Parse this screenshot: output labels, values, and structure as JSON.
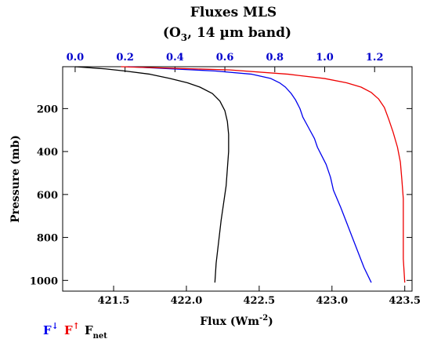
{
  "chart_data": {
    "type": "line",
    "title": "Fluxes MLS",
    "subtitle": {
      "pre": "(O",
      "sub": "3",
      "post": ", 14 µm band)"
    },
    "xlabel": {
      "pre": "Flux (Wm",
      "sup": "-2",
      "post": ")"
    },
    "ylabel": "Pressure (mb)",
    "bottom_axis": {
      "quantity": "F↓, F↑ flux",
      "unit": "Wm-2",
      "range": [
        421.15,
        423.55
      ],
      "ticks": [
        "421.5",
        "422.0",
        "422.5",
        "423.0",
        "423.5"
      ],
      "color": "#000000"
    },
    "top_axis": {
      "quantity": "Fnet flux",
      "unit": "Wm-2",
      "range": [
        -0.05,
        1.35
      ],
      "ticks": [
        "0.0",
        "0.2",
        "0.4",
        "0.6",
        "0.8",
        "1.0",
        "1.2"
      ],
      "color": "#0000cc"
    },
    "y_axis": {
      "range": [
        1050,
        5
      ],
      "reversed": true,
      "ticks": [
        "200",
        "400",
        "600",
        "800",
        "1000"
      ]
    },
    "grid": false,
    "series": [
      {
        "name": "F↓",
        "color": "#0000ee",
        "axis": "bottom",
        "x": [
          421.6,
          421.9,
          422.2,
          422.45,
          422.58,
          422.64,
          422.68,
          422.72,
          422.75,
          422.78,
          422.8,
          422.84,
          422.88,
          422.9,
          422.93,
          422.96,
          422.99,
          423.01,
          423.06,
          423.1,
          423.14,
          423.18,
          423.22,
          423.27
        ],
        "y": [
          5,
          15,
          25,
          40,
          60,
          80,
          100,
          130,
          160,
          200,
          240,
          290,
          340,
          380,
          420,
          460,
          520,
          580,
          660,
          730,
          800,
          870,
          940,
          1010
        ]
      },
      {
        "name": "F↑",
        "color": "#ee0000",
        "axis": "bottom",
        "x": [
          421.55,
          422.3,
          422.7,
          422.95,
          423.1,
          423.2,
          423.27,
          423.32,
          423.36,
          423.39,
          423.42,
          423.45,
          423.47,
          423.48,
          423.49,
          423.49,
          423.49,
          423.5
        ],
        "y": [
          5,
          20,
          40,
          60,
          80,
          100,
          125,
          155,
          195,
          250,
          310,
          380,
          450,
          530,
          620,
          760,
          900,
          1010
        ]
      },
      {
        "name": "F",
        "name_sub": "net",
        "color": "#000000",
        "axis": "top",
        "x": [
          0.0,
          0.06,
          0.12,
          0.2,
          0.3,
          0.38,
          0.45,
          0.5,
          0.55,
          0.58,
          0.6,
          0.61,
          0.615,
          0.615,
          0.61,
          0.605,
          0.595,
          0.585,
          0.575,
          0.565,
          0.56
        ],
        "y": [
          5,
          10,
          15,
          25,
          40,
          60,
          80,
          100,
          130,
          165,
          210,
          260,
          320,
          400,
          480,
          560,
          640,
          720,
          820,
          920,
          1010
        ]
      }
    ],
    "legend": {
      "placement": "bottom-left",
      "items": [
        {
          "base": "F",
          "mark": "↓",
          "mark_style": "sup",
          "color": "#0000ee"
        },
        {
          "base": "F",
          "mark": "↑",
          "mark_style": "sup",
          "color": "#ee0000"
        },
        {
          "base": "F",
          "mark": "net",
          "mark_style": "sub",
          "color": "#000000"
        }
      ]
    }
  }
}
